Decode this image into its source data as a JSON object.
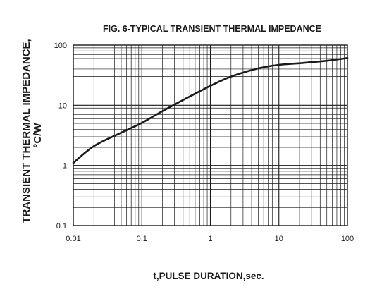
{
  "chart_data": {
    "type": "line",
    "title": "FIG. 6-TYPICAL TRANSIENT THERMAL IMPEDANCE",
    "xlabel": "t,PULSE DURATION,sec.",
    "ylabel_line1": "TRANSIENT THERMAL IMPEDANCE,",
    "ylabel_line2": "°C/W",
    "xscale": "log",
    "yscale": "log",
    "xlim": [
      0.01,
      100
    ],
    "ylim": [
      0.1,
      100
    ],
    "grid": true,
    "xticks": [
      "0.01",
      "0.1",
      "1",
      "10",
      "100"
    ],
    "yticks": [
      "100",
      "10",
      "1",
      "0.1"
    ],
    "series": [
      {
        "x": [
          0.01,
          0.02,
          0.05,
          0.1,
          0.2,
          0.5,
          1,
          2,
          5,
          10,
          20,
          50,
          100
        ],
        "y": [
          1.1,
          2.1,
          3.5,
          5.1,
          8,
          14,
          21,
          30,
          41,
          47,
          50,
          55,
          61
        ]
      }
    ],
    "colors": {
      "line": "#1a1a1a",
      "grid": "#1a1a1a"
    }
  }
}
